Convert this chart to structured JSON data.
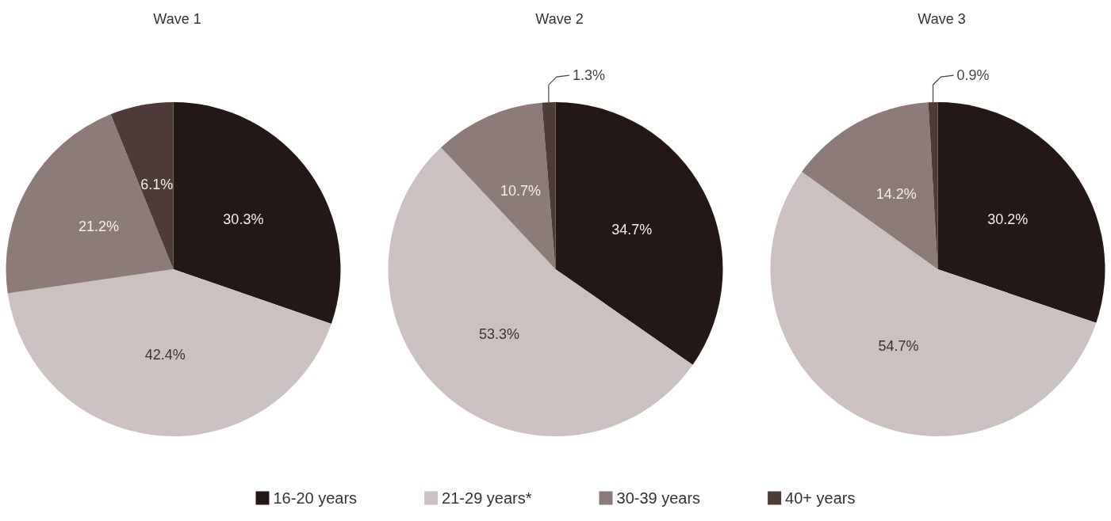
{
  "chart_data": [
    {
      "type": "pie",
      "title": "Wave 1",
      "categories": [
        null,
        null,
        null,
        null
      ],
      "values": [
        30.3,
        42.4,
        21.2,
        6.1
      ],
      "colors": [
        "#231816",
        "#cbc1c0",
        "#8c7b79",
        "#4e3a38"
      ],
      "value_labels": [
        "30.3%",
        "42.4%",
        "21.2%",
        "6.1%"
      ],
      "legend": false
    },
    {
      "type": "pie",
      "title": "Wave 2",
      "categories": [
        "16-20 years",
        "21-29 years*",
        "30-39 years",
        "40+ years"
      ],
      "values": [
        34.7,
        53.3,
        10.7,
        1.3
      ],
      "colors": [
        "#231816",
        "#cbc1c0",
        "#8c7b79",
        "#4e3a38"
      ],
      "value_labels": [
        "34.7%",
        "53.3%",
        "10.7%",
        "1.3%"
      ],
      "legend": "bottom"
    },
    {
      "type": "pie",
      "title": "Wave 3",
      "categories": [
        null,
        null,
        null,
        null
      ],
      "values": [
        30.2,
        54.7,
        14.2,
        0.9
      ],
      "colors": [
        "#231816",
        "#cbc1c0",
        "#8c7b79",
        "#4e3a38"
      ],
      "value_labels": [
        "30.2%",
        "54.7%",
        "14.2%",
        "0.9%"
      ],
      "legend": false
    }
  ]
}
